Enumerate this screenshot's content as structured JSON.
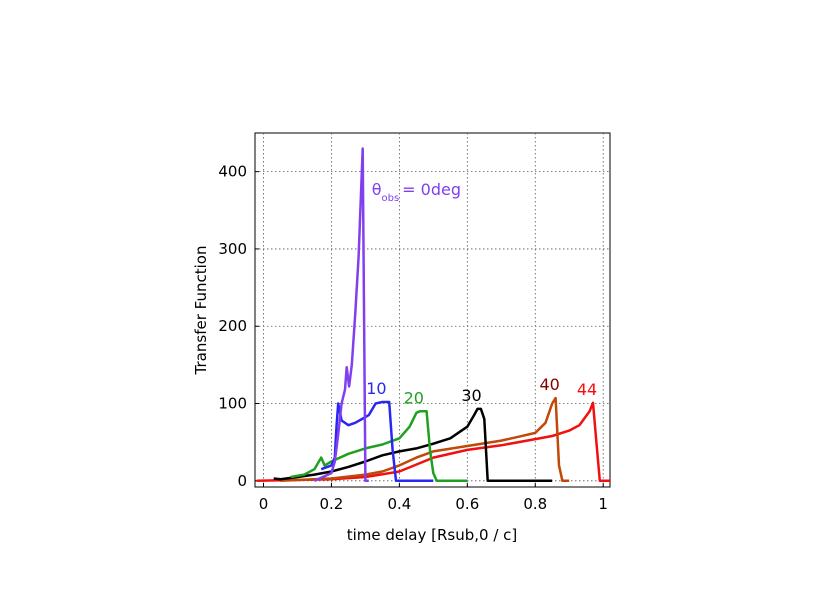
{
  "chart_data": {
    "type": "line",
    "xlabel": "time delay [Rsub,0 / c]",
    "ylabel": "Transfer Function",
    "xlim": [
      -0.025,
      1.02
    ],
    "ylim": [
      -8,
      450
    ],
    "xticks": [
      0,
      0.2,
      0.4,
      0.6,
      0.8,
      1
    ],
    "yticks": [
      0,
      100,
      200,
      300,
      400
    ],
    "grid": true,
    "series": [
      {
        "name": "= 0deg",
        "name_prefix": "θ",
        "name_subscript": "obs",
        "color": "#8040f0",
        "x": [
          0.15,
          0.2,
          0.21,
          0.22,
          0.23,
          0.24,
          0.245,
          0.252,
          0.26,
          0.27,
          0.28,
          0.292,
          0.3,
          0.31
        ],
        "values": [
          0,
          10,
          25,
          60,
          100,
          118,
          147,
          122,
          150,
          215,
          290,
          430,
          0,
          0
        ]
      },
      {
        "name": "10",
        "color": "#2828f0",
        "x": [
          0.17,
          0.2,
          0.21,
          0.215,
          0.22,
          0.23,
          0.25,
          0.27,
          0.29,
          0.31,
          0.33,
          0.35,
          0.37,
          0.38,
          0.39,
          0.5
        ],
        "values": [
          15,
          20,
          30,
          70,
          100,
          78,
          72,
          75,
          80,
          85,
          100,
          102,
          102,
          40,
          0,
          0
        ]
      },
      {
        "name": "20",
        "color": "#20a020",
        "x": [
          0.08,
          0.12,
          0.15,
          0.17,
          0.18,
          0.2,
          0.25,
          0.3,
          0.35,
          0.4,
          0.43,
          0.45,
          0.46,
          0.48,
          0.49,
          0.5,
          0.51,
          0.6
        ],
        "values": [
          5,
          8,
          15,
          30,
          20,
          25,
          35,
          42,
          47,
          55,
          70,
          88,
          90,
          90,
          40,
          10,
          0,
          0
        ]
      },
      {
        "name": "30",
        "color": "#000000",
        "x": [
          0.03,
          0.05,
          0.1,
          0.15,
          0.2,
          0.25,
          0.3,
          0.35,
          0.4,
          0.45,
          0.5,
          0.55,
          0.6,
          0.62,
          0.63,
          0.64,
          0.65,
          0.66,
          0.7,
          0.85
        ],
        "values": [
          3,
          2,
          5,
          8,
          12,
          18,
          25,
          33,
          38,
          42,
          48,
          55,
          70,
          85,
          93,
          93,
          80,
          0,
          0,
          0
        ]
      },
      {
        "name": "40",
        "color": "#c04808",
        "label_color": "#800000",
        "x": [
          0.05,
          0.2,
          0.3,
          0.35,
          0.4,
          0.45,
          0.5,
          0.6,
          0.7,
          0.75,
          0.8,
          0.83,
          0.85,
          0.86,
          0.87,
          0.88,
          0.9
        ],
        "values": [
          0,
          3,
          8,
          12,
          20,
          30,
          38,
          45,
          52,
          57,
          62,
          75,
          100,
          107,
          20,
          0,
          0
        ]
      },
      {
        "name": "44",
        "color": "#f01010",
        "x": [
          -0.02,
          0.2,
          0.3,
          0.4,
          0.5,
          0.6,
          0.7,
          0.8,
          0.85,
          0.9,
          0.93,
          0.96,
          0.97,
          0.98,
          0.99,
          1.02
        ],
        "values": [
          0,
          2,
          5,
          12,
          30,
          40,
          46,
          54,
          58,
          65,
          72,
          90,
          101,
          50,
          0,
          0
        ]
      }
    ]
  }
}
